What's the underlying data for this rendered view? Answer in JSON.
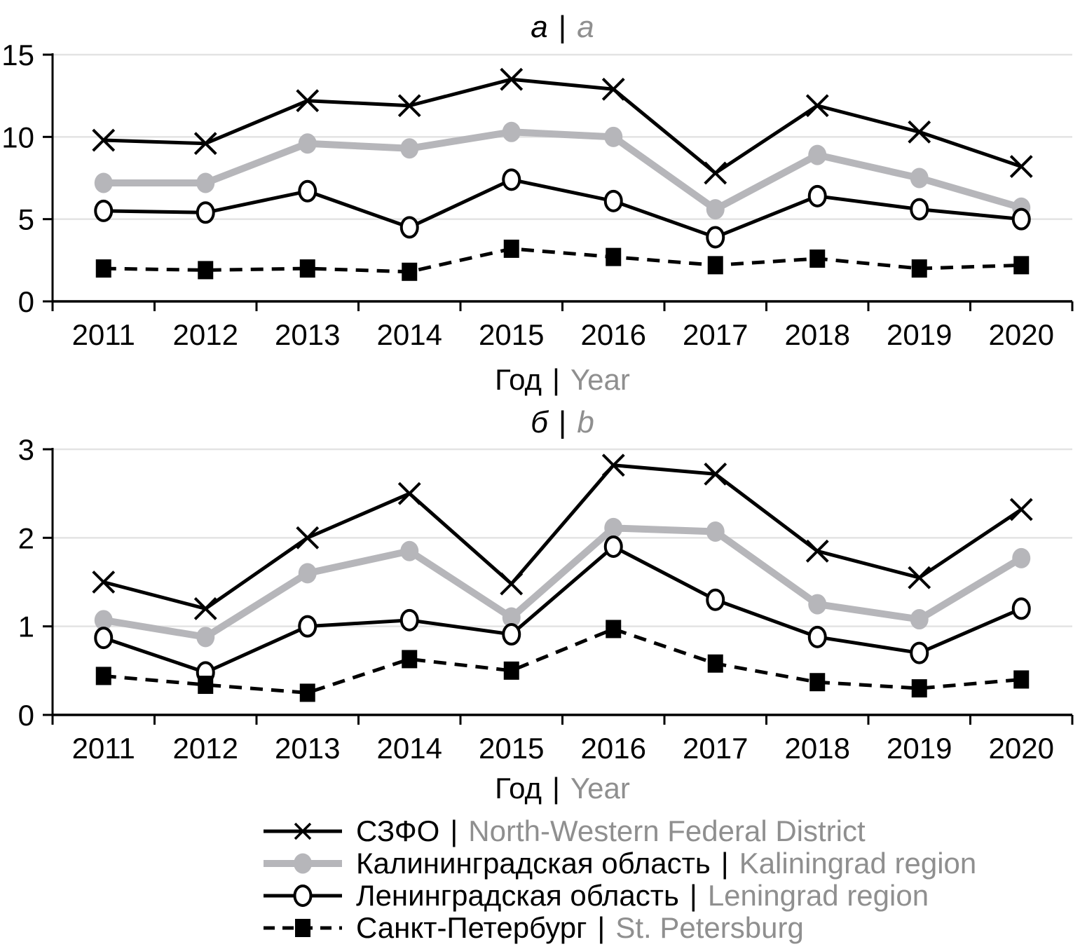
{
  "colors": {
    "series_black": "#000000",
    "series_gray": "#b6b6ba",
    "gridline": "#e3e3e3",
    "text_gray": "#8f8f8f",
    "text_black": "#000000",
    "background": "#ffffff"
  },
  "chart_data": [
    {
      "type": "line",
      "panel": "a",
      "title_ru": "а",
      "title_sep": "|",
      "title_en": "a",
      "xlabel_ru": "Год",
      "xlabel_sep": "|",
      "xlabel_en": "Year",
      "ylim": [
        0,
        15
      ],
      "ystep": 5,
      "grid": true,
      "legend_position": "bottom",
      "categories": [
        "2011",
        "2012",
        "2013",
        "2014",
        "2015",
        "2016",
        "2017",
        "2018",
        "2019",
        "2020"
      ],
      "series": [
        {
          "key": "szfo",
          "name_ru": "СЗФО",
          "name_en": "North-Western Federal District",
          "style": "black-x",
          "values": [
            9.8,
            9.6,
            12.2,
            11.9,
            13.5,
            12.9,
            7.8,
            11.9,
            10.3,
            8.2
          ]
        },
        {
          "key": "kaliningrad",
          "name_ru": "Калининградская область",
          "name_en": "Kaliningrad region",
          "style": "gray-dot",
          "values": [
            7.2,
            7.2,
            9.6,
            9.3,
            10.3,
            10.0,
            5.6,
            8.9,
            7.5,
            5.7
          ]
        },
        {
          "key": "leningrad",
          "name_ru": "Ленинградская область",
          "name_en": "Leningrad region",
          "style": "black-open-circle",
          "values": [
            5.5,
            5.4,
            6.7,
            4.5,
            7.4,
            6.1,
            3.9,
            6.4,
            5.6,
            5.0
          ]
        },
        {
          "key": "spb",
          "name_ru": "Санкт-Петербург",
          "name_en": "St. Petersburg",
          "style": "black-square-dashed",
          "values": [
            2.0,
            1.9,
            2.0,
            1.8,
            3.2,
            2.7,
            2.2,
            2.6,
            2.0,
            2.2
          ]
        }
      ]
    },
    {
      "type": "line",
      "panel": "b",
      "title_ru": "б",
      "title_sep": "|",
      "title_en": "b",
      "xlabel_ru": "Год",
      "xlabel_sep": "|",
      "xlabel_en": "Year",
      "ylim": [
        0,
        3
      ],
      "ystep": 1,
      "grid": true,
      "legend_position": "bottom",
      "categories": [
        "2011",
        "2012",
        "2013",
        "2014",
        "2015",
        "2016",
        "2017",
        "2018",
        "2019",
        "2020"
      ],
      "series": [
        {
          "key": "szfo",
          "name_ru": "СЗФО",
          "name_en": "North-Western Federal District",
          "style": "black-x",
          "values": [
            1.5,
            1.2,
            2.0,
            2.5,
            1.48,
            2.82,
            2.72,
            1.85,
            1.55,
            2.32
          ]
        },
        {
          "key": "kaliningrad",
          "name_ru": "Калининградская область",
          "name_en": "Kaliningrad region",
          "style": "gray-dot",
          "values": [
            1.07,
            0.88,
            1.6,
            1.85,
            1.1,
            2.11,
            2.07,
            1.25,
            1.08,
            1.77
          ]
        },
        {
          "key": "leningrad",
          "name_ru": "Ленинградская область",
          "name_en": "Leningrad region",
          "style": "black-open-circle",
          "values": [
            0.87,
            0.48,
            1.0,
            1.07,
            0.91,
            1.9,
            1.3,
            0.88,
            0.7,
            1.2
          ]
        },
        {
          "key": "spb",
          "name_ru": "Санкт-Петербург",
          "name_en": "St. Petersburg",
          "style": "black-square-dashed",
          "values": [
            0.44,
            0.34,
            0.25,
            0.63,
            0.5,
            0.97,
            0.58,
            0.37,
            0.3,
            0.4
          ]
        }
      ]
    }
  ],
  "legend": {
    "entries": [
      {
        "key": "szfo",
        "label_ru": "СЗФО",
        "sep": "|",
        "label_en": "North-Western Federal District"
      },
      {
        "key": "kaliningrad",
        "label_ru": "Калининградская область",
        "sep": "|",
        "label_en": "Kaliningrad region"
      },
      {
        "key": "leningrad",
        "label_ru": "Ленинградская область",
        "sep": "|",
        "label_en": "Leningrad region"
      },
      {
        "key": "spb",
        "label_ru": "Санкт-Петербург",
        "sep": "|",
        "label_en": "St. Petersburg"
      }
    ]
  }
}
